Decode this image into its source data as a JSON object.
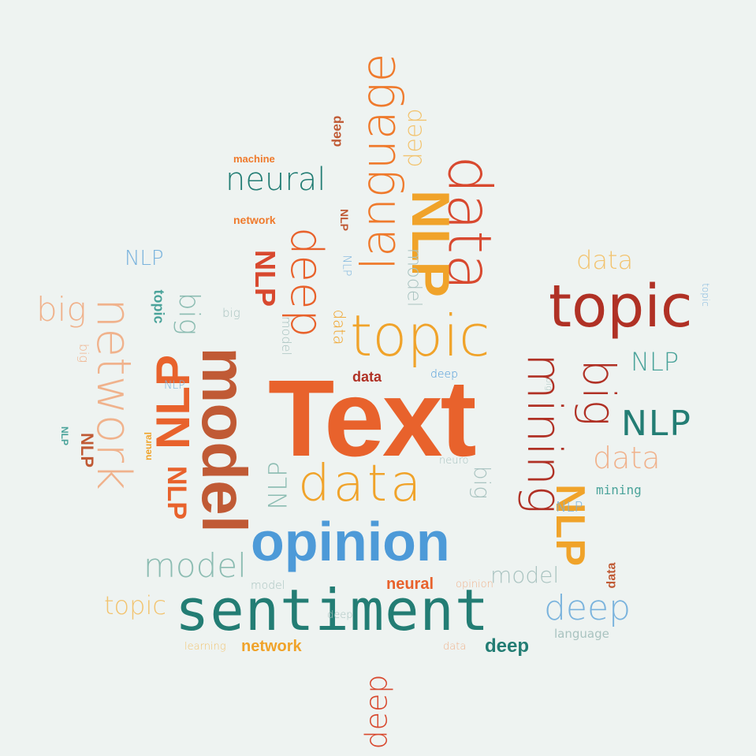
{
  "words": {
    "text": "Text",
    "opinion": "opinion",
    "sentiment": "sentiment",
    "data_center": "data",
    "topic_center": "topic",
    "topic_right": "topic",
    "topic_left": "topic",
    "data_top": "data",
    "nlp_top": "NLP",
    "language_top": "language",
    "deep_top": "deep",
    "deep_tiny1": "deep",
    "deep_mid": "deep",
    "neural_top": "neural",
    "machine": "machine",
    "network_small": "network",
    "nlp_small1": "NLP",
    "nlp_small2": "NLP",
    "model_small_v": "model",
    "model_big_v": "model",
    "nlp_red_v": "NLP",
    "nlp_big_left_v": "NLP",
    "nlp_left_small": "NLP",
    "big_left": "big",
    "big_v_left": "big",
    "topic_v_small": "topic",
    "network_big_v": "network",
    "big_tiny1": "big",
    "mining_v": "mining",
    "big_right_v": "big",
    "nlp_right1": "NLP",
    "nlp_right2": "NLP",
    "data_right": "data",
    "data_top_right": "data",
    "mining_small": "mining",
    "nlp_orange_v": "NLP",
    "nlp_small3": "NLP",
    "model_right": "model",
    "data_tiny_v": "data",
    "deep_right": "deep",
    "language_small": "language",
    "deep_small_bottom": "deep",
    "data_tiny_bottom": "data",
    "deep_bottom_v": "deep",
    "network_bottom": "network",
    "learning_tiny": "learning",
    "deep_tiny2": "deep",
    "neural_bottom": "neural",
    "opinion_tiny": "opinion",
    "model_tiny": "model",
    "model_left": "model",
    "topic_bottom_left": "topic",
    "data_small_center": "data",
    "deep_small_center": "deep",
    "nlp_v_center": "NLP",
    "nlp_center_small": "NLP",
    "neural_v_small": "neural",
    "big_v_center": "big",
    "data_v_small": "data",
    "big_tiny_center": "big",
    "nlp_tiny_far_left": "NLP",
    "topic_tiny_right": "topic",
    "model_v_small2": "model",
    "nlp_v_small3": "NLP",
    "neuro_tiny": "neuro",
    "big_tiny_right": "big",
    "nlp_v_far_left": "NLP"
  }
}
